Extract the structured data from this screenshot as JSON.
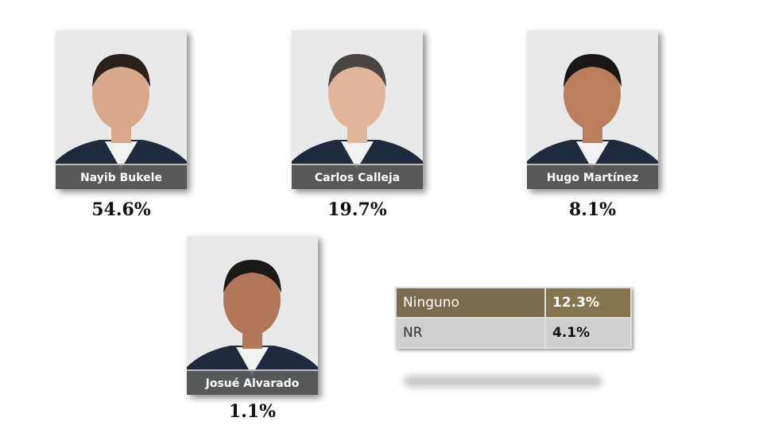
{
  "candidates": [
    {
      "name": "Nayib Bukele",
      "percent": "54.6%"
    },
    {
      "name": "Carlos Calleja",
      "percent": "19.7%"
    },
    {
      "name": "Hugo Martínez",
      "percent": "8.1%"
    },
    {
      "name": "Josué Alvarado",
      "percent": "1.1%"
    }
  ],
  "table": {
    "rows": [
      [
        "Ninguno",
        "12.3%"
      ],
      [
        "NR",
        "4.1%"
      ]
    ]
  }
}
